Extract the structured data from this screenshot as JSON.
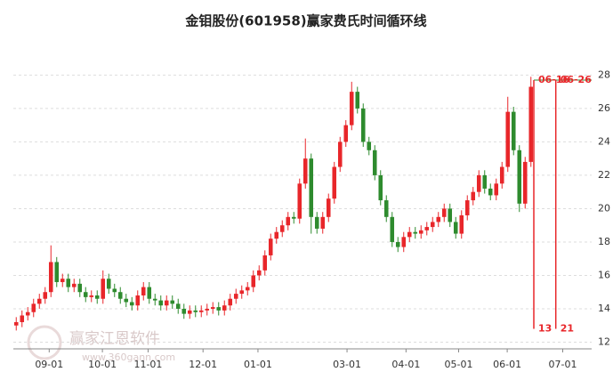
{
  "chart_data": {
    "type": "candlestick",
    "title": "金钼股份(601958)赢家费氏时间循环线",
    "watermark": "赢家江恩软件",
    "watermark_url": "www.360gann.com",
    "up_color": "#e8262a",
    "down_color": "#2e8b2e",
    "x": [
      0,
      1,
      2,
      3,
      4,
      5,
      6,
      7,
      8,
      9,
      10,
      11,
      12,
      13,
      14,
      15,
      16,
      17,
      18,
      19,
      20,
      21,
      22,
      23,
      24,
      25,
      26,
      27,
      28,
      29,
      30,
      31,
      32,
      33,
      34,
      35,
      36,
      37,
      38,
      39,
      40,
      41,
      42,
      43,
      44,
      45,
      46,
      47,
      48,
      49,
      50,
      51,
      52,
      53,
      54,
      55,
      56,
      57,
      58,
      59,
      60,
      61,
      62,
      63,
      64,
      65,
      66,
      67,
      68,
      69,
      70,
      71,
      72,
      73,
      74,
      75,
      76,
      77,
      78,
      79,
      80,
      81,
      82,
      83,
      84,
      85,
      86,
      87,
      88,
      89
    ],
    "open": [
      13.0,
      13.2,
      13.6,
      13.8,
      14.3,
      14.6,
      15.0,
      16.8,
      15.6,
      15.8,
      15.3,
      15.5,
      15.0,
      14.7,
      14.8,
      14.6,
      15.8,
      15.2,
      15.0,
      14.6,
      14.4,
      14.2,
      14.8,
      15.3,
      14.6,
      14.5,
      14.2,
      14.5,
      14.3,
      14.0,
      13.7,
      13.9,
      13.8,
      13.9,
      14.0,
      14.1,
      13.9,
      14.2,
      14.6,
      14.9,
      15.1,
      15.3,
      16.0,
      16.3,
      17.2,
      18.2,
      18.6,
      19.0,
      19.5,
      19.4,
      21.5,
      23.0,
      19.5,
      18.8,
      19.5,
      20.6,
      22.5,
      24.0,
      25.0,
      27.0,
      26.0,
      24.0,
      23.5,
      22.0,
      20.5,
      19.5,
      18.0,
      17.7,
      18.3,
      18.6,
      18.5,
      18.7,
      18.9,
      19.2,
      19.5,
      20.0,
      19.2,
      18.5,
      19.6,
      20.5,
      21.0,
      22.0,
      21.2,
      20.8,
      21.5,
      22.5,
      25.8,
      23.5,
      20.3,
      22.8
    ],
    "high": [
      13.5,
      13.9,
      14.1,
      14.6,
      14.9,
      15.3,
      17.8,
      17.1,
      16.1,
      16.1,
      15.8,
      15.8,
      15.3,
      15.1,
      15.1,
      16.3,
      16.1,
      15.5,
      15.3,
      14.9,
      14.7,
      15.1,
      15.6,
      15.6,
      14.9,
      14.8,
      14.8,
      14.8,
      14.6,
      14.3,
      14.2,
      14.2,
      14.2,
      14.3,
      14.4,
      14.4,
      14.5,
      14.9,
      15.2,
      15.4,
      15.6,
      16.3,
      16.6,
      17.5,
      18.5,
      18.9,
      19.3,
      19.8,
      19.8,
      21.8,
      24.2,
      23.3,
      19.8,
      19.8,
      20.9,
      22.8,
      24.3,
      25.3,
      27.6,
      27.3,
      26.3,
      24.3,
      23.8,
      22.3,
      20.8,
      19.8,
      18.3,
      18.6,
      18.9,
      18.9,
      19.0,
      19.2,
      19.5,
      19.8,
      20.3,
      20.3,
      19.5,
      19.9,
      20.8,
      21.3,
      22.3,
      22.3,
      21.5,
      21.8,
      22.8,
      26.7,
      26.1,
      23.8,
      23.1,
      27.9
    ],
    "low": [
      12.7,
      12.9,
      13.3,
      13.5,
      14.0,
      14.3,
      14.7,
      15.3,
      15.3,
      15.0,
      15.0,
      14.7,
      14.4,
      14.4,
      14.3,
      14.3,
      14.9,
      14.7,
      14.3,
      14.1,
      13.9,
      13.9,
      14.5,
      14.3,
      14.2,
      13.9,
      13.9,
      14.0,
      13.7,
      13.4,
      13.4,
      13.5,
      13.5,
      13.6,
      13.7,
      13.6,
      13.6,
      13.9,
      14.3,
      14.6,
      14.8,
      15.0,
      15.7,
      16.0,
      16.9,
      17.9,
      18.3,
      18.7,
      19.1,
      19.1,
      21.2,
      18.5,
      18.5,
      18.5,
      19.2,
      20.3,
      22.2,
      23.7,
      24.7,
      25.7,
      23.7,
      23.2,
      21.7,
      20.2,
      19.2,
      17.7,
      17.4,
      17.4,
      18.0,
      18.2,
      18.2,
      18.4,
      18.6,
      18.9,
      19.2,
      18.9,
      18.2,
      18.2,
      19.3,
      20.2,
      20.7,
      20.9,
      20.5,
      20.5,
      21.2,
      22.2,
      23.2,
      19.8,
      20.0,
      22.5
    ],
    "close": [
      13.2,
      13.6,
      13.8,
      14.3,
      14.6,
      15.0,
      16.8,
      15.6,
      15.8,
      15.3,
      15.5,
      15.0,
      14.7,
      14.8,
      14.6,
      15.8,
      15.2,
      15.0,
      14.6,
      14.4,
      14.2,
      14.8,
      15.3,
      14.6,
      14.5,
      14.2,
      14.5,
      14.3,
      14.0,
      13.7,
      13.9,
      13.8,
      13.9,
      14.0,
      14.1,
      13.9,
      14.2,
      14.6,
      14.9,
      15.1,
      15.3,
      16.0,
      16.3,
      17.2,
      18.2,
      18.6,
      19.0,
      19.5,
      19.4,
      21.5,
      23.0,
      19.5,
      18.8,
      19.5,
      20.6,
      22.5,
      24.0,
      25.0,
      27.0,
      26.0,
      24.0,
      23.5,
      22.0,
      20.5,
      19.5,
      18.0,
      17.7,
      18.3,
      18.6,
      18.5,
      18.7,
      18.9,
      19.2,
      19.5,
      20.0,
      19.2,
      18.5,
      19.6,
      20.5,
      21.0,
      22.0,
      21.2,
      20.8,
      21.5,
      22.5,
      25.8,
      23.5,
      20.3,
      22.8,
      27.3
    ],
    "xlim": [
      -0.5,
      99.5
    ],
    "xticks": [
      {
        "value": 5.7,
        "label": "09-01"
      },
      {
        "value": 14.9,
        "label": "10-01"
      },
      {
        "value": 22.8,
        "label": "11-01"
      },
      {
        "value": 32.3,
        "label": "12-01"
      },
      {
        "value": 41.8,
        "label": "01-01"
      },
      {
        "value": 57.2,
        "label": "03-01"
      },
      {
        "value": 67.4,
        "label": "04-01"
      },
      {
        "value": 76.5,
        "label": "05-01"
      },
      {
        "value": 84.9,
        "label": "06-01"
      },
      {
        "value": 94.5,
        "label": "07-01"
      }
    ],
    "ylim": [
      11.6,
      28.5
    ],
    "yticks": [
      12,
      14,
      16,
      18,
      20,
      22,
      24,
      26,
      28
    ],
    "grid": true,
    "annotation_color": "#e8262a",
    "annotations": [
      {
        "x": 89.5,
        "y_top": 27.7,
        "y_bottom": 12.8,
        "top_label": "06-16",
        "bottom_label": "13"
      },
      {
        "x": 93.3,
        "y_top": 27.7,
        "y_bottom": 12.8,
        "top_label": "06-26",
        "bottom_label": "21"
      }
    ],
    "level_line": {
      "value": 27.7,
      "from_x": 89.5,
      "color": "#2e8b2e"
    }
  }
}
